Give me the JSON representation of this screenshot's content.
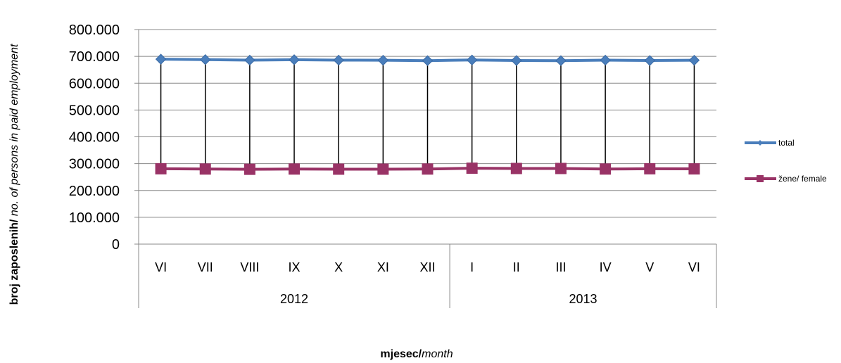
{
  "chart_data": {
    "type": "line",
    "categories": [
      "VI",
      "VII",
      "VIII",
      "IX",
      "X",
      "XI",
      "XII",
      "I",
      "II",
      "III",
      "IV",
      "V",
      "VI"
    ],
    "groups": [
      {
        "label": "2012",
        "count": 7
      },
      {
        "label": "2013",
        "count": 6
      }
    ],
    "series": [
      {
        "name": "total",
        "color": "#4a7ebb",
        "marker": "diamond",
        "values": [
          689500,
          688000,
          686000,
          687500,
          686000,
          685500,
          684000,
          686500,
          684500,
          684000,
          686000,
          684500,
          685500
        ]
      },
      {
        "name": "žene/ female",
        "color": "#993366",
        "marker": "square",
        "values": [
          281000,
          280000,
          279000,
          280000,
          279500,
          279500,
          280000,
          283000,
          282000,
          282000,
          280000,
          281000,
          280500
        ]
      }
    ],
    "ylim": [
      0,
      800000
    ],
    "yticks": [
      "800.000",
      "700.000",
      "600.000",
      "500.000",
      "400.000",
      "300.000",
      "200.000",
      "100.000",
      "0"
    ],
    "ylabel_bold": "broj zaposlenih/",
    "ylabel_italic": " no. of  persons  in paid employment",
    "xlabel_bold": "mjesec/",
    "xlabel_italic": "month",
    "grid": true,
    "drop_lines": true,
    "legend_position": "right"
  }
}
